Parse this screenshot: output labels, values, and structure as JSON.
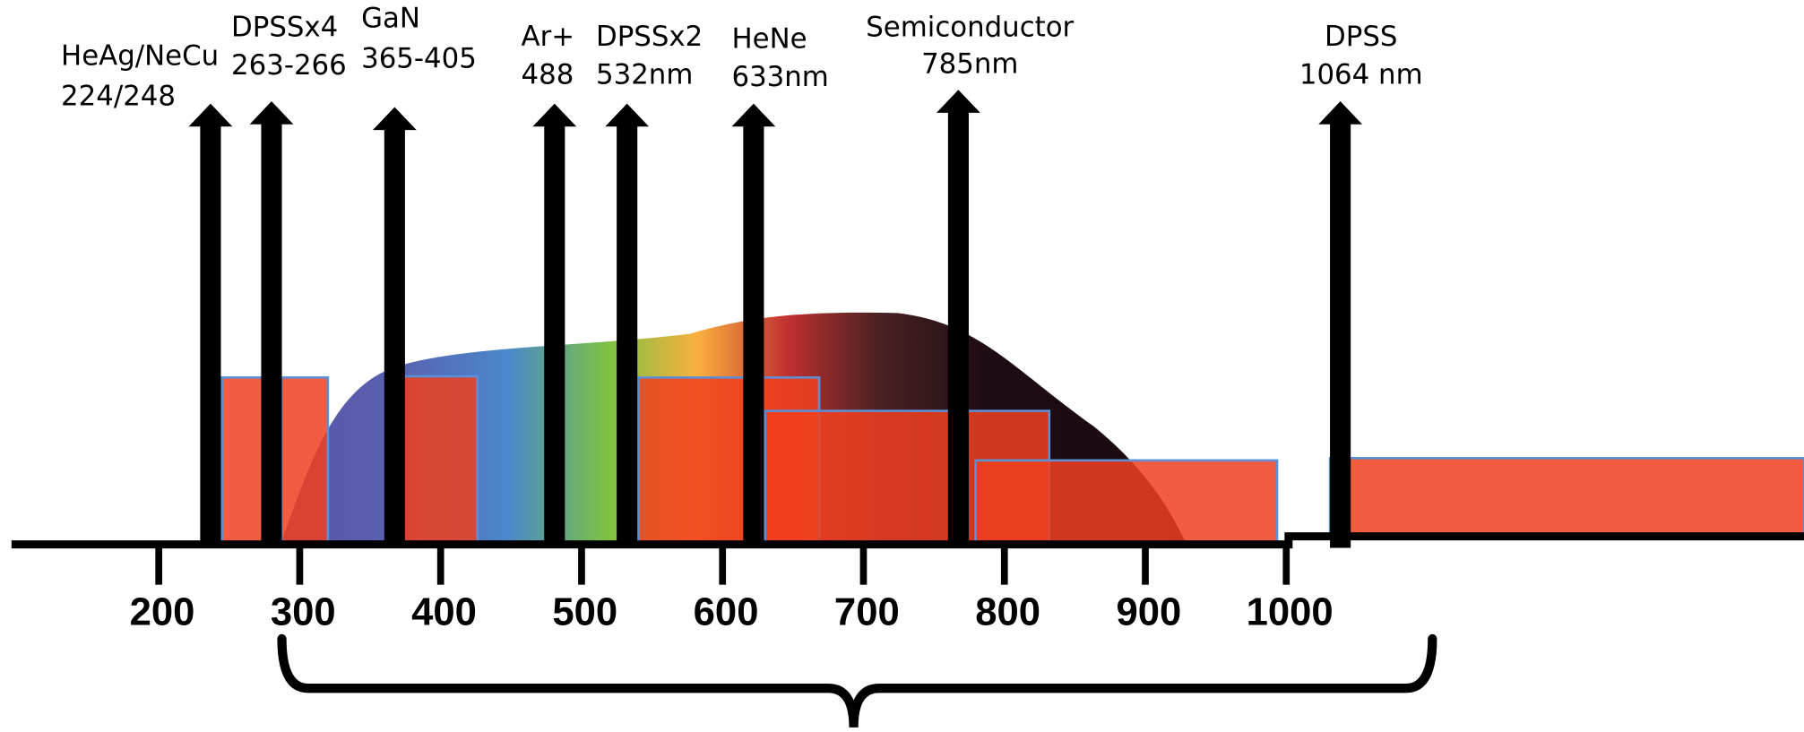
{
  "lasers": [
    {
      "name": "HeAg/NeCu",
      "wavelength": "224/248"
    },
    {
      "name": "DPSSx4",
      "wavelength": "263-266"
    },
    {
      "name": "GaN",
      "wavelength": "365-405"
    },
    {
      "name": "Ar+",
      "wavelength": "488"
    },
    {
      "name": "DPSSx2",
      "wavelength": "532nm"
    },
    {
      "name": "HeNe",
      "wavelength": "633nm"
    },
    {
      "name": "Semiconductor",
      "wavelength": "785nm"
    },
    {
      "name": "DPSS",
      "wavelength": "1064 nm"
    }
  ],
  "axis": {
    "ticks": [
      200,
      300,
      400,
      500,
      600,
      700,
      800,
      900,
      1000
    ]
  }
}
